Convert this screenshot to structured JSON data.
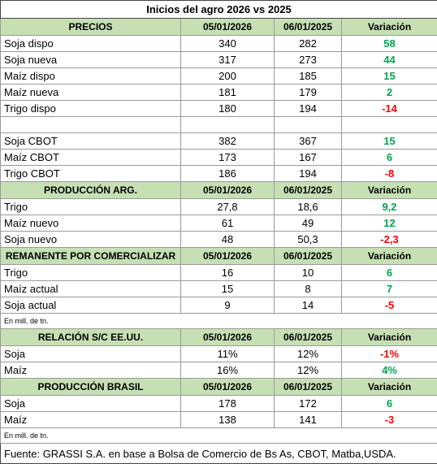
{
  "title": "Inicios del agro 2026 vs 2025",
  "sections": [
    {
      "header": [
        "PRECIOS",
        "05/01/2026",
        "06/01/2025",
        "Variación"
      ],
      "groups": [
        [
          [
            "Soja dispo",
            "340",
            "282",
            "58"
          ],
          [
            "Soja nueva",
            "317",
            "273",
            "44"
          ],
          [
            "Maíz dispo",
            "200",
            "185",
            "15"
          ],
          [
            "Maíz nueva",
            "181",
            "179",
            "2"
          ],
          [
            "Trigo dispo",
            "180",
            "194",
            "-14"
          ]
        ],
        [
          [
            "Soja CBOT",
            "382",
            "367",
            "15"
          ],
          [
            "Maíz CBOT",
            "173",
            "167",
            "6"
          ],
          [
            "Trigo CBOT",
            "186",
            "194",
            "-8"
          ]
        ]
      ]
    },
    {
      "header": [
        "PRODUCCIÓN ARG.",
        "05/01/2026",
        "06/01/2025",
        "Variación"
      ],
      "groups": [
        [
          [
            "Trigo",
            "27,8",
            "18,6",
            "9,2"
          ],
          [
            "Maíz nuevo",
            "61",
            "49",
            "12"
          ],
          [
            "Soja nuevo",
            "48",
            "50,3",
            "-2,3"
          ]
        ]
      ]
    },
    {
      "header": [
        "REMANENTE POR COMERCIALIZAR",
        "05/01/2026",
        "06/01/2025",
        "Variación"
      ],
      "groups": [
        [
          [
            "Trigo",
            "16",
            "10",
            "6"
          ],
          [
            "Maíz actual",
            "15",
            "8",
            "7"
          ],
          [
            "Soja actual",
            "9",
            "14",
            "-5"
          ]
        ]
      ],
      "note": "En mill. de tn."
    },
    {
      "header": [
        "RELACIÓN S/C EE.UU.",
        "05/01/2026",
        "06/01/2025",
        "Variación"
      ],
      "groups": [
        [
          [
            "Soja",
            "11%",
            "12%",
            "-1%"
          ],
          [
            "Maíz",
            "16%",
            "12%",
            "4%"
          ]
        ]
      ]
    },
    {
      "header": [
        "PRODUCCIÓN BRASIL",
        "05/01/2026",
        "06/01/2025",
        "Variación"
      ],
      "groups": [
        [
          [
            "Soja",
            "178",
            "172",
            "6"
          ],
          [
            "Maíz",
            "138",
            "141",
            "-3"
          ]
        ]
      ],
      "note": "En mill. de tn."
    }
  ],
  "footer": "Fuente: GRASSI S.A. en base a Bolsa de Comercio de Bs As, CBOT, Matba,USDA."
}
